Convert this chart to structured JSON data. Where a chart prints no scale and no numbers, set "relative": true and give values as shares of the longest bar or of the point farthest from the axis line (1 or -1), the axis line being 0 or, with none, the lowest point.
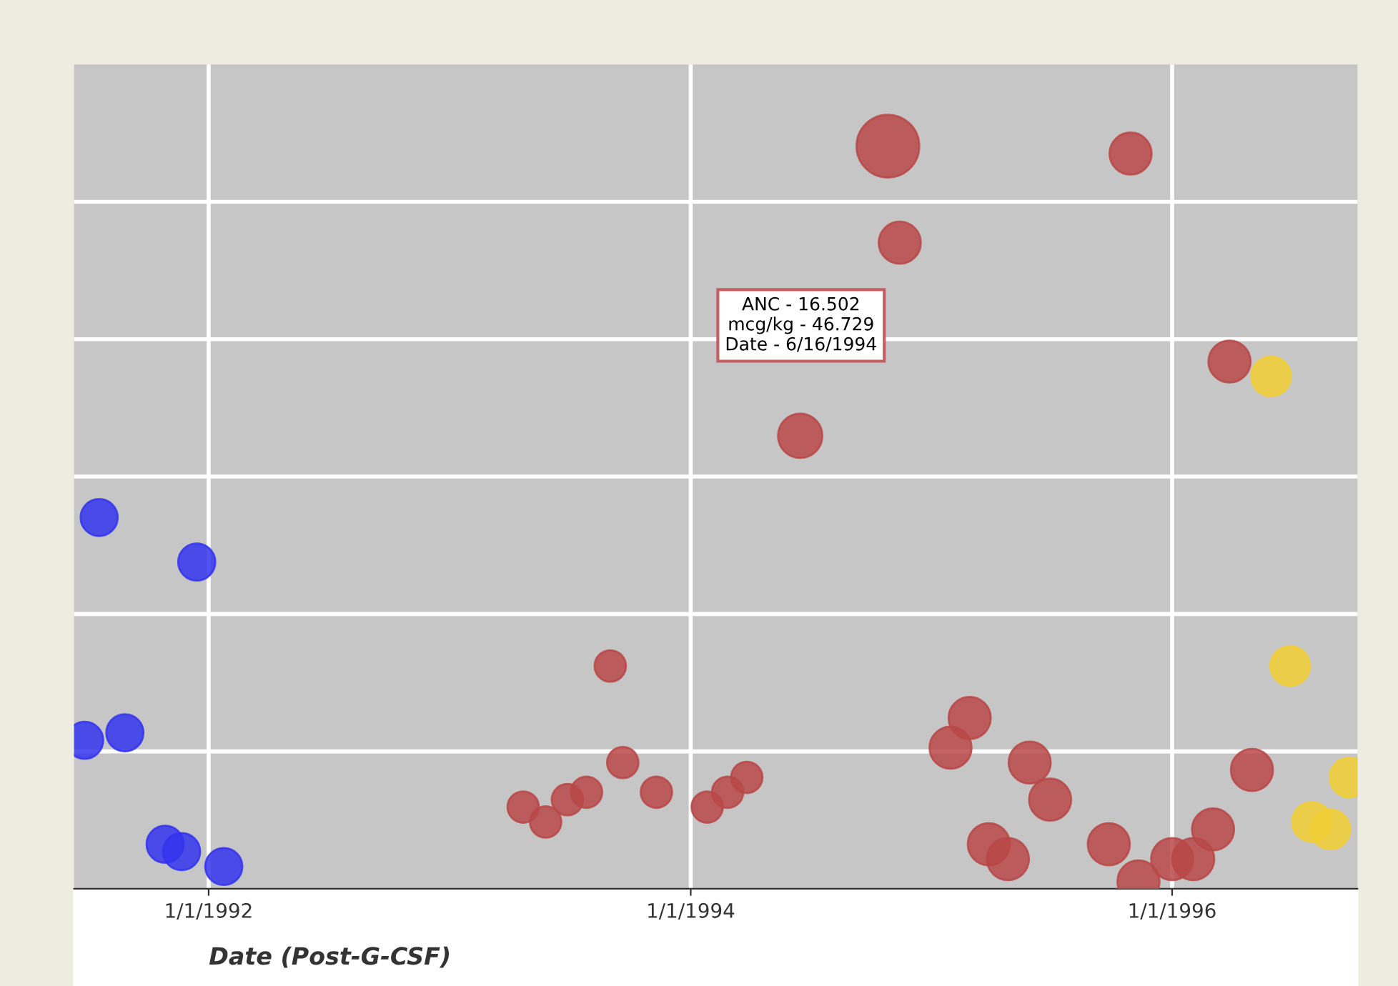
{
  "chart_data": {
    "type": "bubble",
    "relative": true,
    "xlabel": "Date (Post-G-CSF)",
    "xlim": [
      "1991-06-11",
      "1996-10-08"
    ],
    "xticks": [
      {
        "value": "1992-01-01",
        "label": "1/1/1992"
      },
      {
        "value": "1994-01-01",
        "label": "1/1/1994"
      },
      {
        "value": "1996-01-01",
        "label": "1/1/1996"
      }
    ],
    "tick_labels": "x",
    "grid": true,
    "legend": false,
    "annotations": [
      "ANC - 16.502\nmcg/kg - 46.729\nDate - 6/16/1994"
    ],
    "series": [
      {
        "color": "#3434ee",
        "x": [
          "1991-07-19",
          "1991-12-14",
          "1991-06-27",
          "1991-08-27",
          "1991-10-27",
          "1991-11-21",
          "1992-01-24"
        ],
        "values": [
          0.5,
          0.44,
          0.2,
          0.21,
          0.06,
          0.05,
          0.03
        ],
        "sizes": [
          0.35,
          0.35,
          0.35,
          0.35,
          0.35,
          0.35,
          0.35
        ]
      },
      {
        "color": "#b84848",
        "x": [
          "1994-10-27",
          "1995-10-30",
          "1994-11-14",
          "1994-06-16",
          "1996-03-28",
          "1993-09-01",
          "1993-09-20",
          "1993-11-10",
          "1993-07-27",
          "1993-06-28",
          "1993-04-22",
          "1993-05-26",
          "1994-01-26",
          "1994-02-26",
          "1994-03-27",
          "1995-02-28",
          "1995-01-30",
          "1995-05-30",
          "1995-06-30",
          "1995-03-29",
          "1995-04-27",
          "1995-09-27",
          "1995-11-11",
          "1996-01-01",
          "1996-02-02",
          "1996-03-03",
          "1996-05-01"
        ],
        "values": [
          1.0,
          0.99,
          0.87,
          0.61,
          0.71,
          0.3,
          0.17,
          0.13,
          0.13,
          0.12,
          0.11,
          0.09,
          0.11,
          0.13,
          0.15,
          0.23,
          0.19,
          0.17,
          0.12,
          0.06,
          0.04,
          0.06,
          0.01,
          0.04,
          0.04,
          0.08,
          0.16
        ],
        "sizes": [
          1,
          0.45,
          0.45,
          0.5,
          0.45,
          0.25,
          0.25,
          0.25,
          0.25,
          0.25,
          0.25,
          0.25,
          0.25,
          0.25,
          0.25,
          0.45,
          0.45,
          0.45,
          0.45,
          0.45,
          0.45,
          0.45,
          0.45,
          0.45,
          0.45,
          0.45,
          0.45
        ]
      },
      {
        "color": "#f0cc33",
        "x": [
          "1996-05-30",
          "1996-06-28",
          "1996-07-31",
          "1996-08-28",
          "1996-09-26"
        ],
        "values": [
          0.69,
          0.3,
          0.09,
          0.08,
          0.15
        ],
        "sizes": [
          0.4,
          0.4,
          0.4,
          0.4,
          0.4
        ]
      }
    ]
  }
}
